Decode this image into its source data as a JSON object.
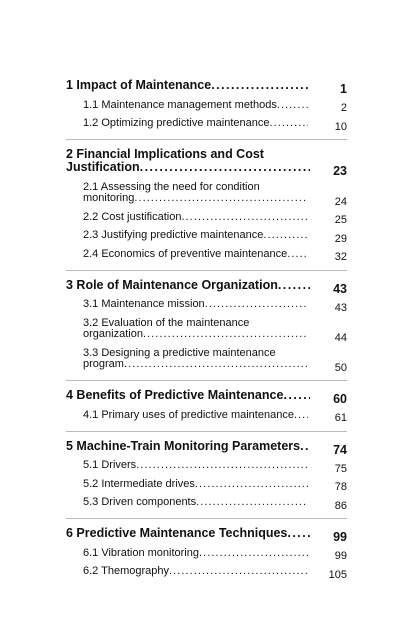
{
  "toc": {
    "chapters": [
      {
        "title": "1 Impact of Maintenance",
        "page": "1",
        "sections": [
          {
            "title": "1.1 Maintenance management methods",
            "page": "2"
          },
          {
            "title": "1.2 Optimizing predictive maintenance",
            "page": "10"
          }
        ]
      },
      {
        "title": "2 Financial Implications and Cost Justification",
        "page": "23",
        "sections": [
          {
            "title": "2.1 Assessing the need for condition monitoring",
            "page": "24"
          },
          {
            "title": "2.2 Cost justification",
            "page": "25"
          },
          {
            "title": "2.3 Justifying predictive maintenance",
            "page": "29"
          },
          {
            "title": "2.4 Economics of preventive maintenance",
            "page": "32"
          }
        ]
      },
      {
        "title": "3 Role of Maintenance Organization",
        "page": "43",
        "sections": [
          {
            "title": "3.1 Maintenance mission",
            "page": "43"
          },
          {
            "title": "3.2 Evaluation of the maintenance organization",
            "page": "44"
          },
          {
            "title": "3.3 Designing a predictive maintenance program",
            "page": "50"
          }
        ]
      },
      {
        "title": "4 Benefits of Predictive Maintenance",
        "page": "60",
        "sections": [
          {
            "title": "4.1 Primary uses of predictive maintenance",
            "page": "61"
          }
        ]
      },
      {
        "title": "5 Machine-Train Monitoring Parameters",
        "page": "74",
        "sections": [
          {
            "title": "5.1 Drivers",
            "page": "75"
          },
          {
            "title": "5.2 Intermediate drives",
            "page": "78"
          },
          {
            "title": "5.3 Driven components",
            "page": "86"
          }
        ]
      },
      {
        "title": "6 Predictive Maintenance Techniques",
        "page": "99",
        "sections": [
          {
            "title": "6.1 Vibration monitoring",
            "page": "99"
          },
          {
            "title": "6.2 Themography",
            "page": "105"
          }
        ]
      }
    ]
  }
}
